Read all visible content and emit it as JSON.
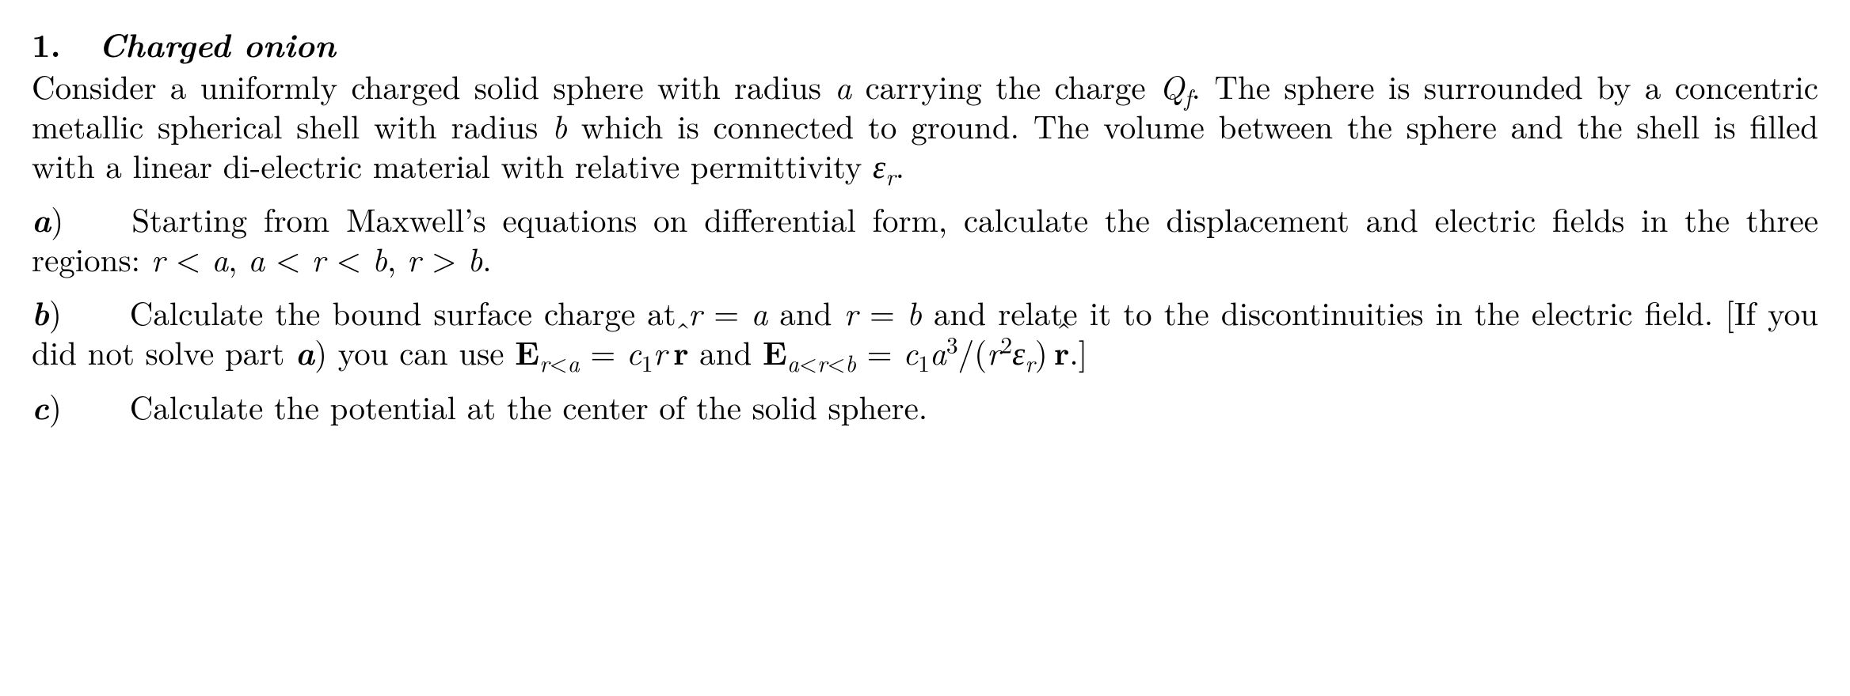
{
  "problem": {
    "number": "1.",
    "title": "Charged onion",
    "intro_html": "Consider a uniformly charged solid sphere with radius <span class='it'>a</span> carrying the charge <span class='it'>Q<sub>f</sub></span>. The sphere is surrounded by a concentric metallic spherical shell with radius <span class='it'>b</span> which is con­nected to ground. The volume between the sphere and the shell is filled with a linear di-electric material with relative permittivity <span class='it'>&epsilon;<sub>r</sub></span>.",
    "parts": {
      "a": {
        "label": "a",
        "text_html": "Starting from Maxwell&rsquo;s equations on differential form, calculate the displacement and electric fields in the three regions: <span class='nowrap'><span class='it'>r</span> &lt; <span class='it'>a</span></span>, <span class='nowrap'><span class='it'>a</span> &lt; <span class='it'>r</span> &lt; <span class='it'>b</span></span>, <span class='nowrap'><span class='it'>r</span> &gt; <span class='it'>b</span></span>."
      },
      "b": {
        "label": "b",
        "text_html": "Calculate the bound surface charge at <span class='nowrap'><span class='it'>r</span> = <span class='it'>a</span></span> and <span class='nowrap'><span class='it'>r</span> = <span class='it'>b</span></span> and relate it to the discon­tinuities in the electric field. [If you did not solve part <span class='part-label'>a</span>) you can use <span class='nowrap'><b>E</b><sub><span class='it'>r</span>&lt;<span class='it'>a</span></sub> = <span class='it'>c</span><sub>1</sub><span class='it'>r</span>&#8201;<span class='hat'><b>r</b></span></span> and <span class='nowrap'><b>E</b><sub><span class='it'>a</span>&lt;<span class='it'>r</span>&lt;<span class='it'>b</span></sub> = <span class='it'>c</span><sub>1</sub><span class='it'>a</span><sup>3</sup>/(<span class='it'>r</span><sup>2</sup><span class='it'>&epsilon;</span><sub><span class='it'>r</span></sub>)&#8201;<span class='hat'><b>r</b></span></span>.]"
      },
      "c": {
        "label": "c",
        "text_html": "Calculate the potential at the center of the solid sphere."
      }
    }
  }
}
